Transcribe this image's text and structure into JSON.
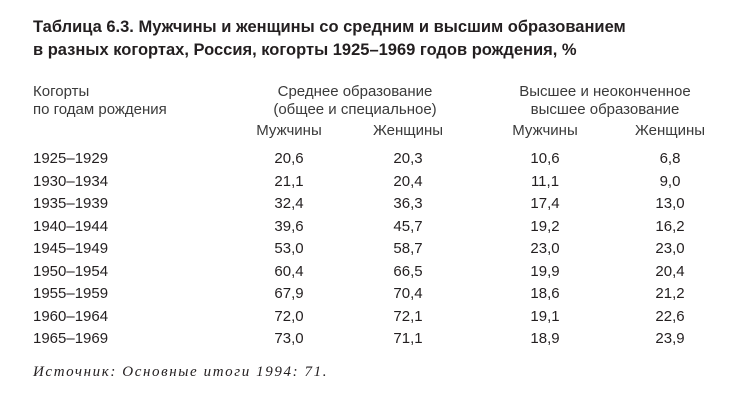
{
  "title": {
    "line1": "Таблица 6.3. Мужчины и женщины со средним и высшим образованием",
    "line2": "в разных когортах, Россия, когорты 1925–1969 годов рождения, %"
  },
  "headers": {
    "cohort": [
      "Когорты",
      "по годам рождения"
    ],
    "secondary": [
      "Среднее образование",
      "(общее и специальное)"
    ],
    "higher": [
      "Высшее и неоконченное",
      "высшее образование"
    ],
    "sub": [
      "Мужчины",
      "Женщины",
      "Мужчины",
      "Женщины"
    ]
  },
  "rows": [
    {
      "cohort": "1925–1929",
      "values": [
        "20,6",
        "20,3",
        "10,6",
        "6,8"
      ]
    },
    {
      "cohort": "1930–1934",
      "values": [
        "21,1",
        "20,4",
        "11,1",
        "9,0"
      ]
    },
    {
      "cohort": "1935–1939",
      "values": [
        "32,4",
        "36,3",
        "17,4",
        "13,0"
      ]
    },
    {
      "cohort": "1940–1944",
      "values": [
        "39,6",
        "45,7",
        "19,2",
        "16,2"
      ]
    },
    {
      "cohort": "1945–1949",
      "values": [
        "53,0",
        "58,7",
        "23,0",
        "23,0"
      ]
    },
    {
      "cohort": "1950–1954",
      "values": [
        "60,4",
        "66,5",
        "19,9",
        "20,4"
      ]
    },
    {
      "cohort": "1955–1959",
      "values": [
        "67,9",
        "70,4",
        "18,6",
        "21,2"
      ]
    },
    {
      "cohort": "1960–1964",
      "values": [
        "72,0",
        "72,1",
        "19,1",
        "22,6"
      ]
    },
    {
      "cohort": "1965–1969",
      "values": [
        "73,0",
        "71,1",
        "18,9",
        "23,9"
      ]
    }
  ],
  "source": "Источник: Основные итоги 1994: 71."
}
